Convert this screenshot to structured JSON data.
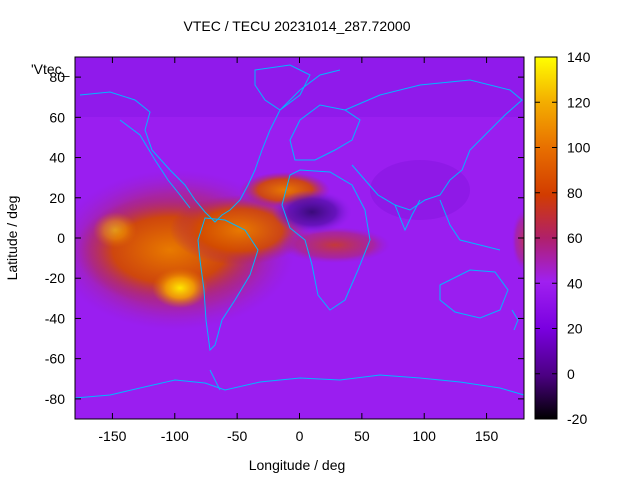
{
  "chart_data": {
    "type": "heatmap",
    "title": "VTEC / TECU 20231014_287.72000",
    "xlabel": "Longitude / deg",
    "ylabel": "Latitude / deg",
    "key_label": "'Vtec_",
    "xlim": [
      -180,
      180
    ],
    "ylim": [
      -90,
      90
    ],
    "x_ticks": [
      -150,
      -100,
      -50,
      0,
      50,
      100,
      150
    ],
    "y_ticks": [
      -80,
      -60,
      -40,
      -20,
      0,
      20,
      40,
      60,
      80
    ],
    "colorbar": {
      "range": [
        -20,
        140
      ],
      "ticks": [
        -20,
        0,
        20,
        40,
        60,
        80,
        100,
        120,
        140
      ],
      "palette": [
        "#000000",
        "#4b0082",
        "#7a00e0",
        "#9b1bf0",
        "#b81a5a",
        "#d43a00",
        "#e06a00",
        "#f0b000",
        "#ffff00"
      ]
    },
    "grid": false,
    "legend": "top-left",
    "background_vtec": 22,
    "features": [
      {
        "name": "equatorial anomaly over South America / Atlantic",
        "lon": -120,
        "lat": 5,
        "vtec": 85
      },
      {
        "name": "peak south of Peru",
        "lon": -95,
        "lat": -22,
        "vtec": 120
      },
      {
        "name": "northern crest",
        "lon": -10,
        "lat": 22,
        "vtec": 95
      },
      {
        "name": "African equatorial band",
        "lon": 40,
        "lat": -5,
        "vtec": 65
      },
      {
        "name": "Sahara minimum",
        "lon": 10,
        "lat": 12,
        "vtec": 5
      }
    ]
  }
}
